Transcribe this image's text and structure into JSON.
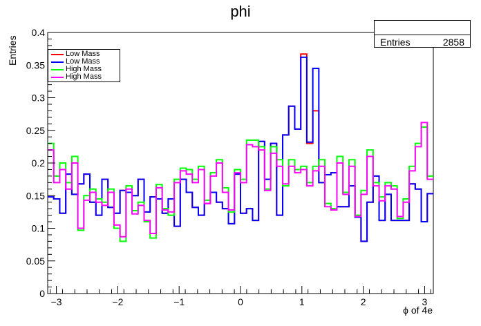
{
  "chart_data": {
    "type": "histogram",
    "title": "phi",
    "xlabel": "ϕ of 4e",
    "ylabel": "Entries",
    "xlim": [
      -3.1416,
      3.1416
    ],
    "ylim": [
      0,
      0.4
    ],
    "nbins": 64,
    "x_ticks": [
      "−3",
      "−2",
      "−1",
      "0",
      "1",
      "2",
      "3"
    ],
    "y_ticks": [
      "0",
      "0.05",
      "0.1",
      "0.15",
      "0.2",
      "0.25",
      "0.3",
      "0.35",
      "0.4"
    ],
    "grid": false,
    "legend_position": "top-left",
    "stats": {
      "label": "Entries",
      "value": "2858"
    },
    "series": [
      {
        "name": "Low Mass",
        "color": "#ff0000",
        "values": [
          0.148,
          0.145,
          0.123,
          0.183,
          0.152,
          0.168,
          0.183,
          0.14,
          0.12,
          0.175,
          0.132,
          0.123,
          0.158,
          0.155,
          0.15,
          0.175,
          0.125,
          0.148,
          0.145,
          0.123,
          0.145,
          0.103,
          0.175,
          0.155,
          0.132,
          0.12,
          0.138,
          0.155,
          0.14,
          0.13,
          0.107,
          0.183,
          0.123,
          0.13,
          0.112,
          0.233,
          0.175,
          0.23,
          0.12,
          0.243,
          0.287,
          0.252,
          0.367,
          0.23,
          0.28,
          0.17,
          0.182,
          0.185,
          0.133,
          0.133,
          0.165,
          0.117,
          0.08,
          0.14,
          0.18,
          0.112,
          0.152,
          0.112,
          0.112,
          0.112,
          0.168,
          0.16,
          0.11,
          0.153
        ]
      },
      {
        "name": "Low Mass",
        "color": "#0000ff",
        "values": [
          0.148,
          0.145,
          0.123,
          0.183,
          0.152,
          0.168,
          0.183,
          0.14,
          0.12,
          0.175,
          0.132,
          0.123,
          0.158,
          0.155,
          0.15,
          0.175,
          0.125,
          0.148,
          0.145,
          0.123,
          0.145,
          0.103,
          0.175,
          0.155,
          0.132,
          0.12,
          0.138,
          0.155,
          0.14,
          0.13,
          0.107,
          0.183,
          0.123,
          0.13,
          0.112,
          0.233,
          0.175,
          0.23,
          0.12,
          0.243,
          0.287,
          0.252,
          0.362,
          0.232,
          0.345,
          0.17,
          0.182,
          0.185,
          0.133,
          0.133,
          0.165,
          0.117,
          0.08,
          0.14,
          0.18,
          0.112,
          0.152,
          0.112,
          0.112,
          0.112,
          0.168,
          0.16,
          0.11,
          0.153
        ]
      },
      {
        "name": "High Mass",
        "color": "#00ff00",
        "values": [
          0.23,
          0.18,
          0.2,
          0.17,
          0.21,
          0.097,
          0.15,
          0.16,
          0.145,
          0.14,
          0.16,
          0.1,
          0.08,
          0.165,
          0.127,
          0.14,
          0.11,
          0.085,
          0.167,
          0.13,
          0.12,
          0.175,
          0.192,
          0.19,
          0.175,
          0.195,
          0.143,
          0.185,
          0.205,
          0.162,
          0.125,
          0.19,
          0.175,
          0.235,
          0.235,
          0.225,
          0.16,
          0.225,
          0.205,
          0.165,
          0.205,
          0.19,
          0.195,
          0.17,
          0.195,
          0.205,
          0.138,
          0.13,
          0.21,
          0.155,
          0.205,
          0.12,
          0.158,
          0.22,
          0.17,
          0.148,
          0.17,
          0.165,
          0.115,
          0.145,
          0.195,
          0.23,
          0.255,
          0.18
        ]
      },
      {
        "name": "High Mass",
        "color": "#ff00ff",
        "values": [
          0.22,
          0.17,
          0.19,
          0.16,
          0.2,
          0.1,
          0.143,
          0.155,
          0.14,
          0.135,
          0.155,
          0.105,
          0.087,
          0.16,
          0.122,
          0.135,
          0.112,
          0.092,
          0.162,
          0.128,
          0.125,
          0.17,
          0.188,
          0.183,
          0.17,
          0.19,
          0.138,
          0.18,
          0.2,
          0.155,
          0.128,
          0.185,
          0.17,
          0.228,
          0.225,
          0.22,
          0.158,
          0.215,
          0.195,
          0.168,
          0.195,
          0.185,
          0.19,
          0.165,
          0.188,
          0.195,
          0.133,
          0.128,
          0.2,
          0.152,
          0.195,
          0.118,
          0.152,
          0.21,
          0.165,
          0.142,
          0.165,
          0.16,
          0.118,
          0.14,
          0.188,
          0.225,
          0.262,
          0.175
        ]
      }
    ]
  }
}
